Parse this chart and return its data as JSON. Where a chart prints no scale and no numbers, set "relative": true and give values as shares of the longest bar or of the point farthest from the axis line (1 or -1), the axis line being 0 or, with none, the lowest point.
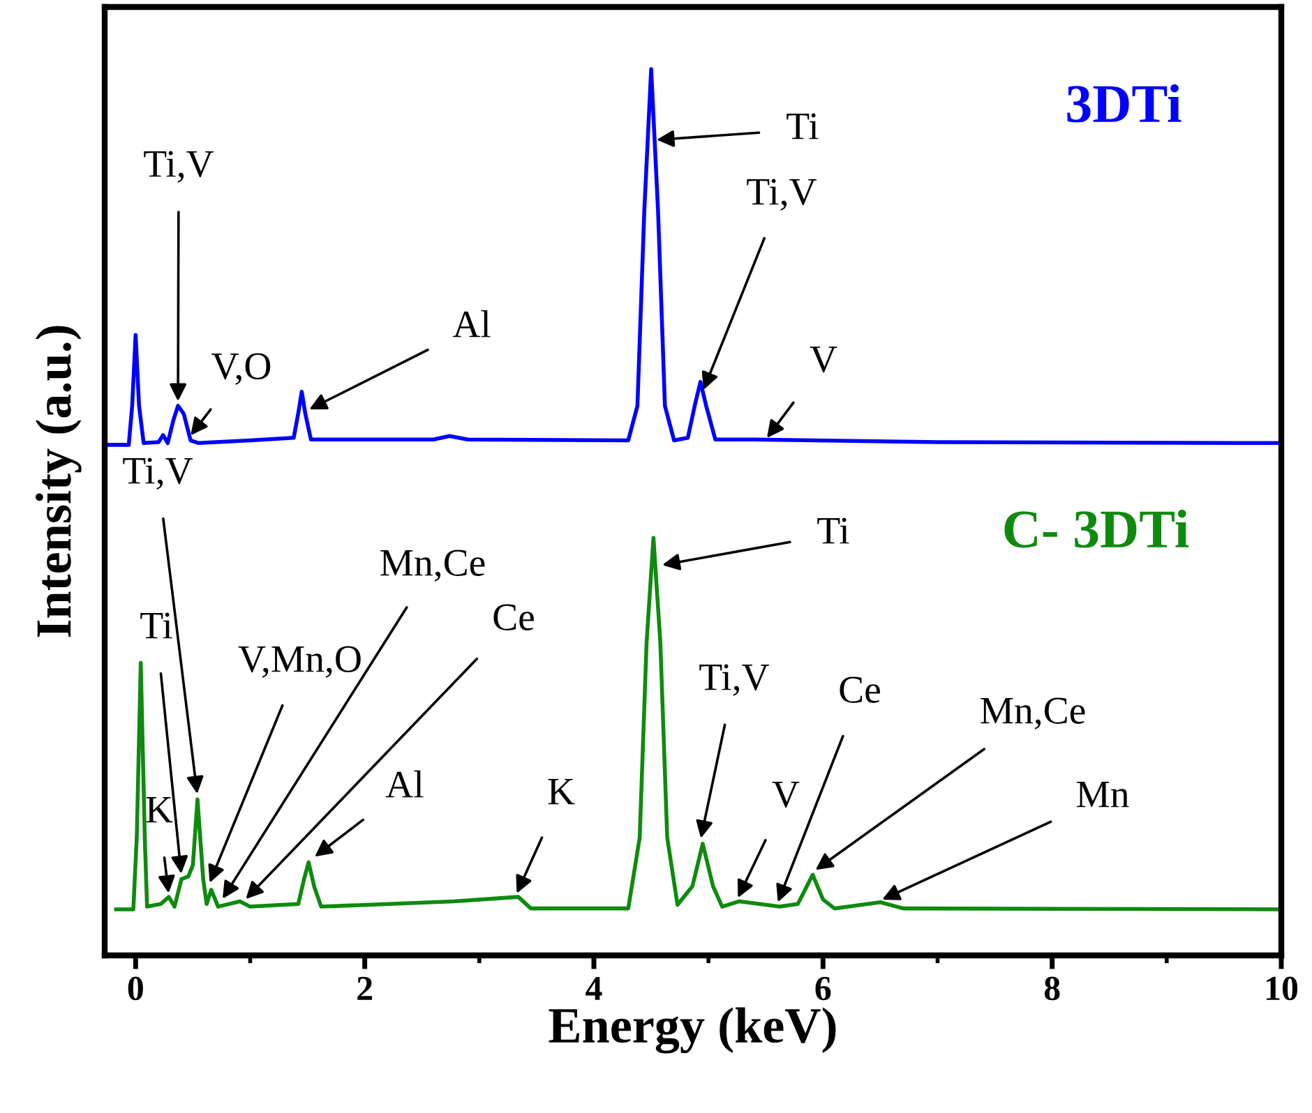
{
  "chart_data": {
    "type": "line",
    "relative": true,
    "xlabel": "Energy (keV)",
    "ylabel": "Intensity (a.u.)",
    "xlim": [
      -0.27,
      10
    ],
    "xticks": [
      0,
      {
        "value": 1,
        "label": null
      },
      2,
      {
        "value": 3,
        "label": null
      },
      4,
      {
        "value": 5,
        "label": null
      },
      6,
      {
        "value": 7,
        "label": null
      },
      8,
      {
        "value": 9,
        "label": null
      },
      10
    ],
    "tick_labels": "x",
    "grid": false,
    "legend": false,
    "marker": "none",
    "line_style": "solid",
    "series": [
      {
        "name": "3DTi",
        "color": "#0000ff",
        "x": [
          -0.23,
          -0.06,
          -0.03,
          0.0,
          0.03,
          0.07,
          0.2,
          0.24,
          0.28,
          0.33,
          0.37,
          0.42,
          0.48,
          0.55,
          1.0,
          1.38,
          1.42,
          1.45,
          1.48,
          1.53,
          2.6,
          2.74,
          2.9,
          4.3,
          4.38,
          4.44,
          4.5,
          4.56,
          4.62,
          4.7,
          4.82,
          4.88,
          4.93,
          4.98,
          5.06,
          5.4,
          7.0,
          10
        ],
        "values": [
          0.576,
          0.576,
          0.62,
          0.7,
          0.62,
          0.578,
          0.579,
          0.587,
          0.578,
          0.604,
          0.62,
          0.611,
          0.581,
          0.578,
          0.581,
          0.584,
          0.612,
          0.636,
          0.612,
          0.582,
          0.582,
          0.586,
          0.582,
          0.581,
          0.62,
          0.84,
          1.0,
          0.84,
          0.62,
          0.581,
          0.584,
          0.62,
          0.647,
          0.62,
          0.582,
          0.582,
          0.579,
          0.578
        ]
      },
      {
        "name": "C- 3DTi",
        "color": "#0f8a0f",
        "x": [
          -0.17,
          -0.02,
          0.01,
          0.045,
          0.08,
          0.1,
          0.22,
          0.29,
          0.34,
          0.4,
          0.46,
          0.5,
          0.54,
          0.59,
          0.62,
          0.66,
          0.72,
          0.91,
          1.0,
          1.42,
          1.47,
          1.51,
          1.56,
          1.62,
          2.78,
          3.34,
          3.45,
          4.3,
          4.4,
          4.46,
          4.52,
          4.58,
          4.64,
          4.73,
          4.86,
          4.95,
          5.04,
          5.12,
          5.27,
          5.62,
          5.78,
          5.91,
          6.0,
          6.1,
          6.5,
          6.7,
          10
        ],
        "values": [
          0.052,
          0.052,
          0.133,
          0.33,
          0.133,
          0.055,
          0.058,
          0.066,
          0.055,
          0.086,
          0.089,
          0.102,
          0.176,
          0.086,
          0.058,
          0.074,
          0.055,
          0.061,
          0.055,
          0.058,
          0.086,
          0.105,
          0.077,
          0.055,
          0.061,
          0.066,
          0.053,
          0.053,
          0.133,
          0.353,
          0.471,
          0.353,
          0.133,
          0.057,
          0.078,
          0.126,
          0.078,
          0.055,
          0.061,
          0.055,
          0.058,
          0.091,
          0.063,
          0.053,
          0.06,
          0.053,
          0.052
        ]
      }
    ],
    "annotations": [
      {
        "text": "Ti,V",
        "x": 0.37,
        "y": 0.623
      },
      {
        "text": "V,O",
        "x": 0.47,
        "y": 0.585
      },
      {
        "text": "Al",
        "x": 1.5,
        "y": 0.615
      },
      {
        "text": "Ti",
        "x": 4.53,
        "y": 0.92
      },
      {
        "text": "Ti,V",
        "x": 4.95,
        "y": 0.636
      },
      {
        "text": "V",
        "x": 5.5,
        "y": 0.582
      },
      {
        "text": "Ti,V",
        "x": 0.54,
        "y": 0.18
      },
      {
        "text": "Ti",
        "x": 0.4,
        "y": 0.09
      },
      {
        "text": "K",
        "x": 0.29,
        "y": 0.068
      },
      {
        "text": "V,Mn,O",
        "x": 0.64,
        "y": 0.08
      },
      {
        "text": "Mn,Ce",
        "x": 0.75,
        "y": 0.062
      },
      {
        "text": "Ce",
        "x": 0.95,
        "y": 0.062
      },
      {
        "text": "Al",
        "x": 1.55,
        "y": 0.11
      },
      {
        "text": "K",
        "x": 3.32,
        "y": 0.068
      },
      {
        "text": "Ti",
        "x": 4.58,
        "y": 0.44
      },
      {
        "text": "Ti,V",
        "x": 4.93,
        "y": 0.13
      },
      {
        "text": "V",
        "x": 5.25,
        "y": 0.063
      },
      {
        "text": "Ce",
        "x": 5.6,
        "y": 0.058
      },
      {
        "text": "Mn,Ce",
        "x": 5.92,
        "y": 0.095
      },
      {
        "text": "Mn",
        "x": 6.5,
        "y": 0.062
      }
    ]
  }
}
